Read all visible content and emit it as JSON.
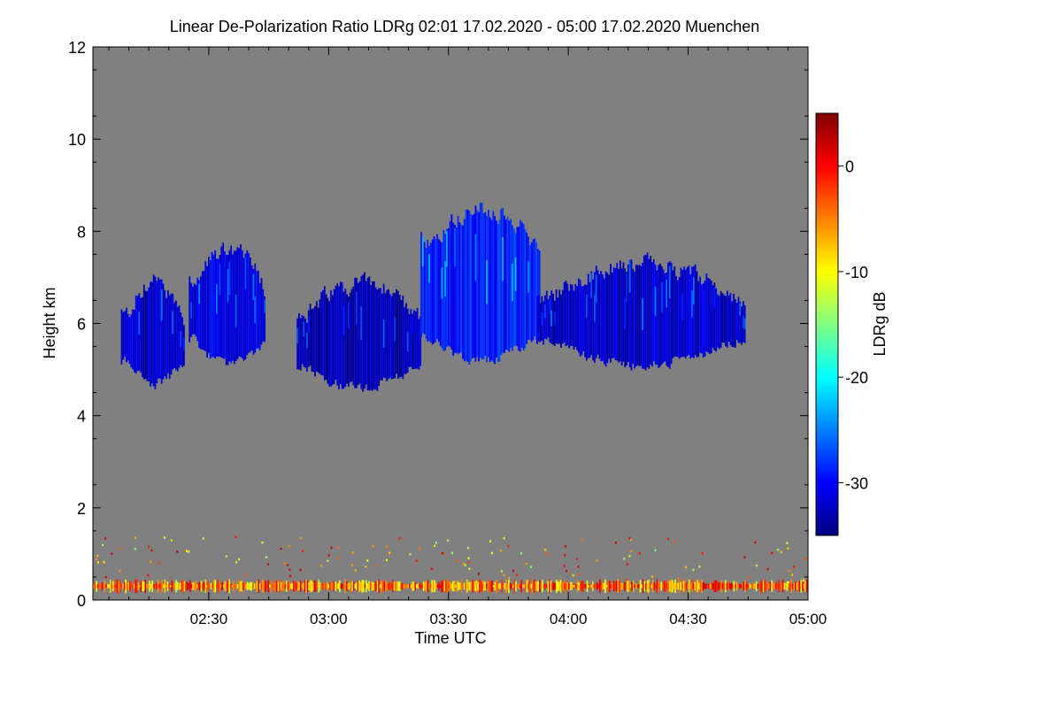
{
  "chart_data": {
    "type": "heatmap",
    "title": "Linear De-Polarization Ratio LDRg   02:01 17.02.2020 - 05:00 17.02.2020 Muenchen",
    "xlabel": "Time UTC",
    "ylabel": "Height km",
    "xlim_minutes_utc": [
      121,
      300
    ],
    "ylim_km": [
      0,
      12
    ],
    "x_ticks": [
      {
        "label": "02:30",
        "minutes": 150
      },
      {
        "label": "03:00",
        "minutes": 180
      },
      {
        "label": "03:30",
        "minutes": 210
      },
      {
        "label": "04:00",
        "minutes": 240
      },
      {
        "label": "04:30",
        "minutes": 270
      },
      {
        "label": "05:00",
        "minutes": 300
      }
    ],
    "y_ticks": [
      {
        "label": "0",
        "value": 0
      },
      {
        "label": "2",
        "value": 2
      },
      {
        "label": "4",
        "value": 4
      },
      {
        "label": "6",
        "value": 6
      },
      {
        "label": "8",
        "value": 8
      },
      {
        "label": "10",
        "value": 10
      },
      {
        "label": "12",
        "value": 12
      }
    ],
    "colorbar": {
      "label": "LDRg dB",
      "range_db": [
        -35,
        5
      ],
      "ticks": [
        {
          "label": "0",
          "value": 0
        },
        {
          "label": "-10",
          "value": -10
        },
        {
          "label": "-20",
          "value": -20
        },
        {
          "label": "-30",
          "value": -30
        }
      ],
      "colors": [
        "#000080",
        "#0000ff",
        "#0080ff",
        "#00ffff",
        "#80ff80",
        "#ffff00",
        "#ff8000",
        "#ff0000",
        "#800000"
      ]
    },
    "background_color": "#808080",
    "cloud_regions": [
      {
        "name": "cloud-a",
        "t_start": 128,
        "t_end": 144,
        "base_km": 4.7,
        "top_km": 6.9,
        "ldr_db": -32
      },
      {
        "name": "cloud-b",
        "t_start": 145,
        "t_end": 164,
        "base_km": 5.1,
        "top_km": 7.6,
        "ldr_db": -31
      },
      {
        "name": "cloud-c",
        "t_start": 172,
        "t_end": 203,
        "base_km": 4.6,
        "top_km": 6.9,
        "ldr_db": -33
      },
      {
        "name": "cloud-d",
        "t_start": 203,
        "t_end": 233,
        "base_km": 5.2,
        "top_km": 8.5,
        "ldr_db": -29
      },
      {
        "name": "cloud-e",
        "t_start": 232,
        "t_end": 284,
        "base_km": 5.1,
        "top_km": 7.3,
        "ldr_db": -32
      }
    ],
    "surface_layer": {
      "height_km": 0.3,
      "ldr_db": 0
    }
  }
}
